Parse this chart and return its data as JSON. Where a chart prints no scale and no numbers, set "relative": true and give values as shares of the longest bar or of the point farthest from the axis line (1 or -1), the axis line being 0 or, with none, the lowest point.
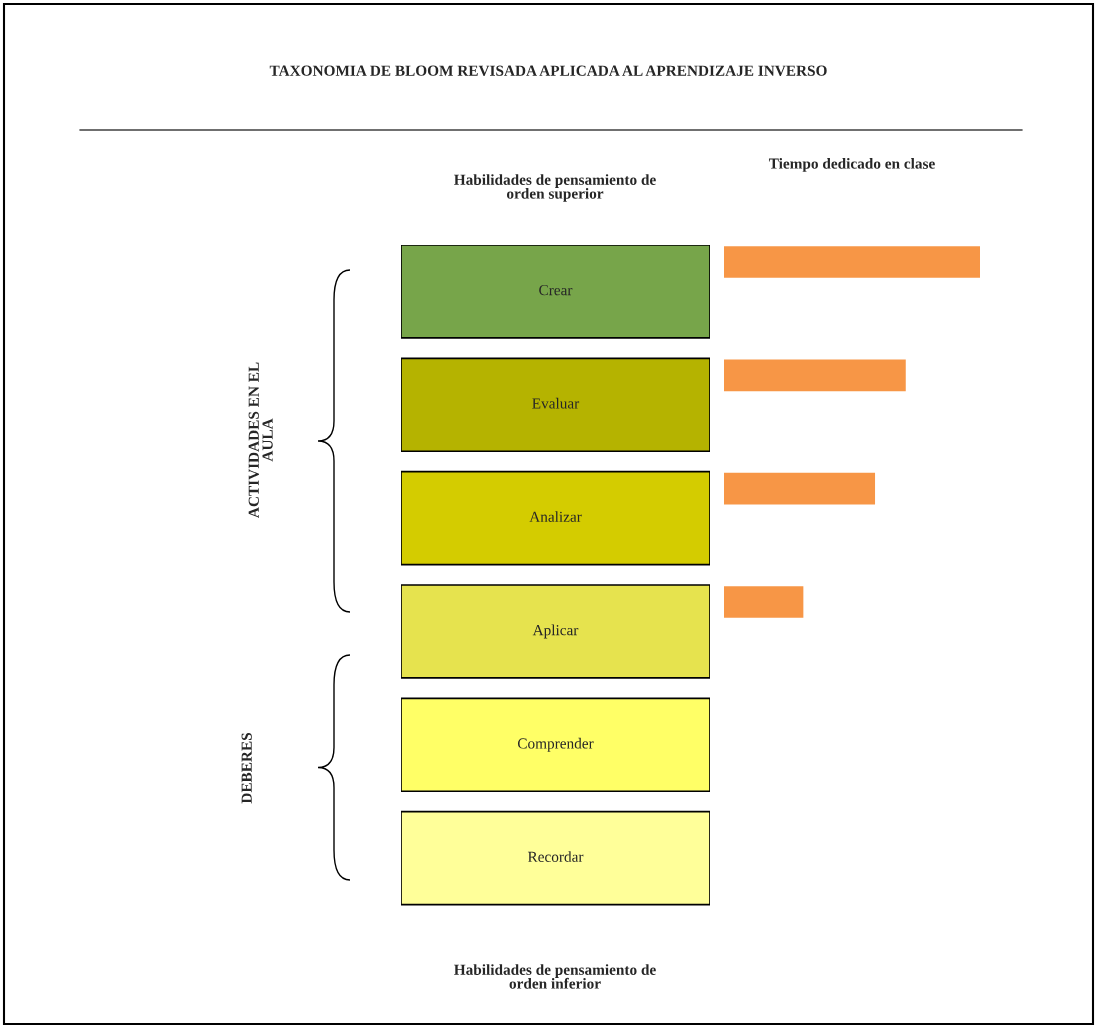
{
  "chart_data": {
    "type": "bar",
    "orientation": "horizontal",
    "relative": true,
    "title": "TAXONOMIA DE BLOOM REVISADA APLICADA AL APRENDIZAJE INVERSO",
    "xlabel": "Tiempo dedicado en clase",
    "categories": [
      "Crear",
      "Evaluar",
      "Analizar",
      "Aplicar",
      "Comprender",
      "Recordar"
    ],
    "values": [
      1,
      0.71,
      0.59,
      0.31,
      null,
      null
    ],
    "color": "#f79646",
    "annotations": [
      "Habilidades de pensamiento de orden superior",
      "Habilidades de pensamiento de orden inferior",
      "ACTIVIDADES EN EL AULA",
      "DEBERES"
    ]
  }
}
